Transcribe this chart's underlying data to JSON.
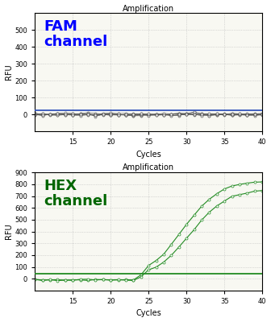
{
  "fam": {
    "title": "Amplification",
    "label": "FAM\nchannel",
    "label_color": "#0000FF",
    "ylim": [
      -100,
      600
    ],
    "yticks": [
      0,
      100,
      200,
      300,
      400,
      500
    ],
    "threshold": 25,
    "line_color": "#3355BB",
    "data_color": "#555555",
    "noise_amp": 5
  },
  "hex": {
    "title": "Amplification",
    "label": "HEX\nchannel",
    "label_color": "#006600",
    "ylim": [
      -100,
      900
    ],
    "yticks": [
      0,
      100,
      200,
      300,
      400,
      500,
      600,
      700,
      800,
      900
    ],
    "threshold": 40,
    "line_color": "#228B22",
    "data_color": "#228B22",
    "sigmoid_L1": 830,
    "sigmoid_k1": 0.42,
    "sigmoid_x01": 29.5,
    "sigmoid_L2": 760,
    "sigmoid_k2": 0.42,
    "sigmoid_x02": 29.5
  },
  "xlim": [
    10,
    40
  ],
  "xticks": [
    15,
    20,
    25,
    30,
    35,
    40
  ],
  "xlabel": "Cycles",
  "ylabel": "RFU",
  "bg_color": "#F8F8F2",
  "grid_color": "#BBBBBB",
  "title_fontsize": 7,
  "tick_fontsize": 6,
  "label_fontsize": 7
}
